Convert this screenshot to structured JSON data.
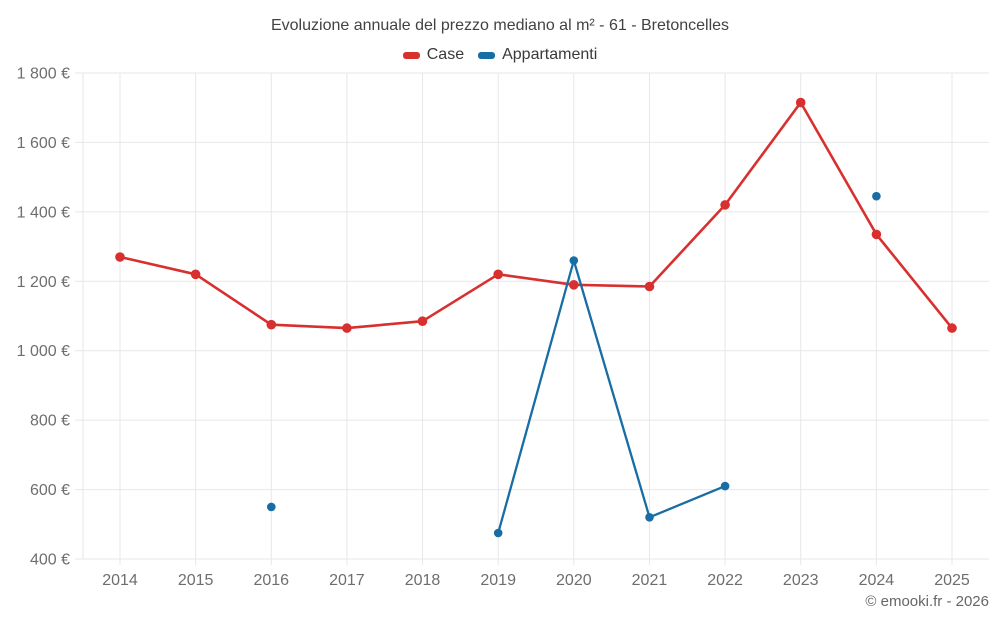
{
  "title": "Evoluzione annuale del prezzo mediano al m² - 61 - Bretoncelles",
  "attribution": "© emooki.fr - 2026",
  "colors": {
    "case": "#d7302f",
    "appartamenti": "#176da4",
    "grid": "#e7e7e7",
    "title_text": "#424242",
    "axis_text": "#6e6e6e",
    "legend_text": "#3a3a3a",
    "attribution_text": "#666666",
    "background": "#ffffff"
  },
  "chart_data": {
    "type": "line",
    "title": "Evoluzione annuale del prezzo mediano al m² - 61 - Bretoncelles",
    "categories": [
      "2014",
      "2015",
      "2016",
      "2017",
      "2018",
      "2019",
      "2020",
      "2021",
      "2022",
      "2023",
      "2024",
      "2025"
    ],
    "series": [
      {
        "name": "Case",
        "color": "#d7302f",
        "values": [
          1270,
          1220,
          1075,
          1065,
          1085,
          1220,
          1190,
          1185,
          1420,
          1715,
          1335,
          1065
        ]
      },
      {
        "name": "Appartamenti",
        "color": "#176da4",
        "values": [
          null,
          null,
          550,
          null,
          null,
          475,
          1260,
          520,
          610,
          null,
          1445,
          null
        ]
      }
    ],
    "xlabel": "",
    "ylabel": "",
    "currency": "€",
    "ylim": [
      400,
      1800
    ],
    "ytick_step": 200,
    "ytick_values": [
      400,
      600,
      800,
      1000,
      1200,
      1400,
      1600,
      1800
    ],
    "ytick_labels": [
      "400 €",
      "600 €",
      "800 €",
      "1 000 €",
      "1 200 €",
      "1 400 €",
      "1 600 €",
      "1 800 €"
    ],
    "grid": true,
    "legend_position": "top"
  }
}
